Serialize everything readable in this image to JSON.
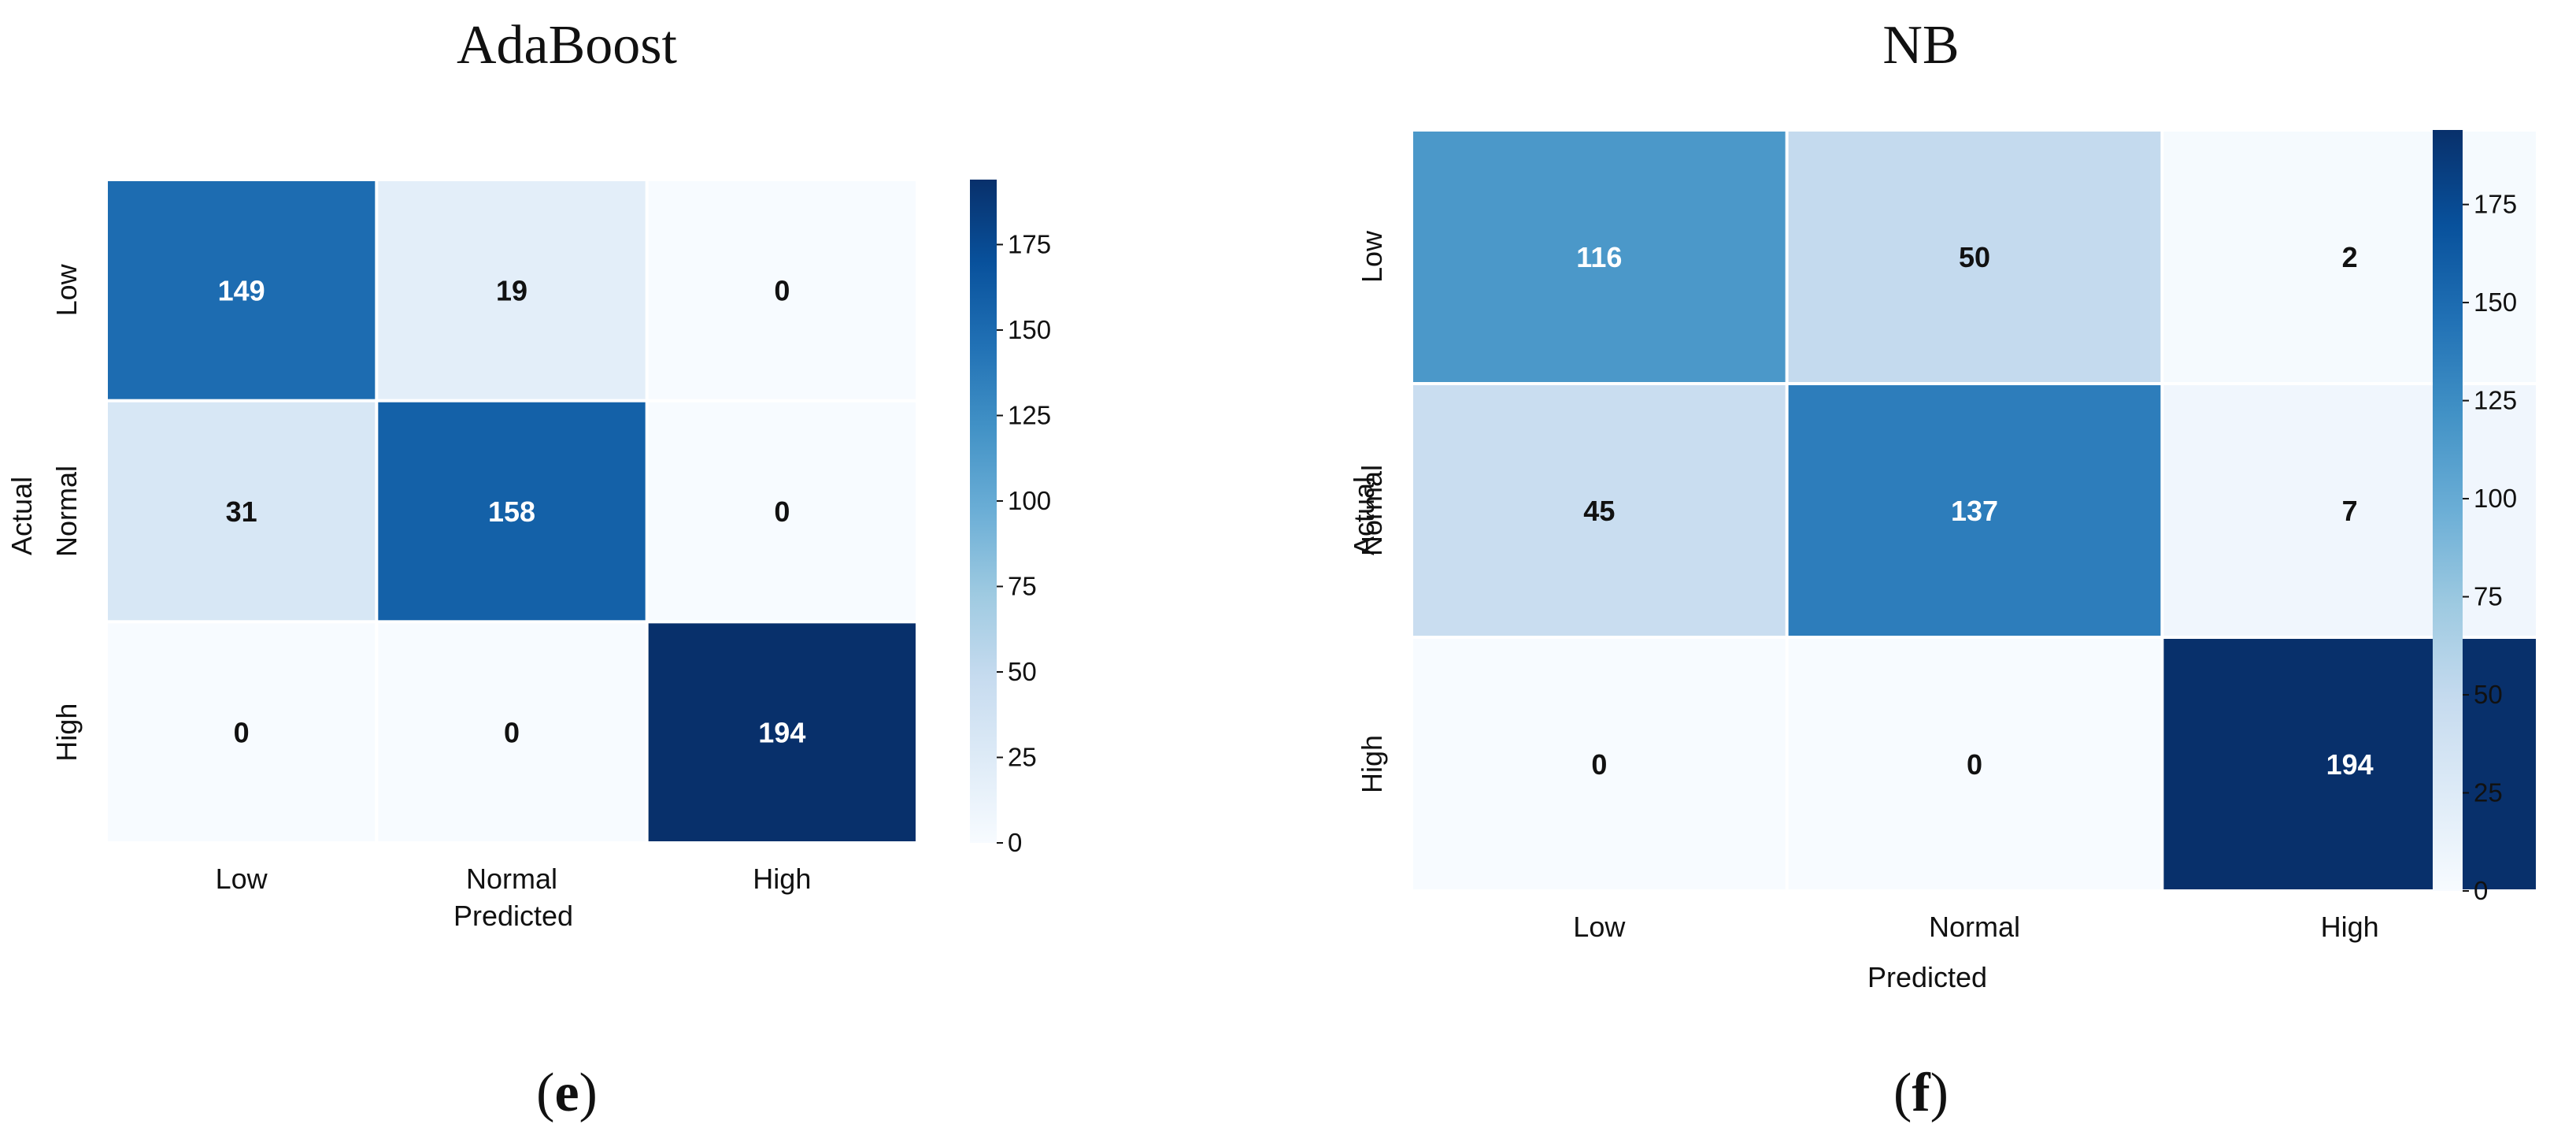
{
  "panels": [
    {
      "panel_letter": "e",
      "chart_data": {
        "type": "heatmap",
        "title": "AdaBoost",
        "xlabel": "Predicted",
        "ylabel": "Actual",
        "x_categories": [
          "Low",
          "Normal",
          "High"
        ],
        "y_categories": [
          "Low",
          "Normal",
          "High"
        ],
        "values": [
          [
            149,
            19,
            0
          ],
          [
            31,
            158,
            0
          ],
          [
            0,
            0,
            194
          ]
        ],
        "colorbar": {
          "min": 0,
          "max": 194,
          "ticks": [
            0,
            25,
            50,
            75,
            100,
            125,
            150,
            175
          ]
        },
        "colormap": "Blues"
      }
    },
    {
      "panel_letter": "f",
      "chart_data": {
        "type": "heatmap",
        "title": "NB",
        "xlabel": "Predicted",
        "ylabel": "Actual",
        "x_categories": [
          "Low",
          "Normal",
          "High"
        ],
        "y_categories": [
          "Low",
          "Normal",
          "High"
        ],
        "values": [
          [
            116,
            50,
            2
          ],
          [
            45,
            137,
            7
          ],
          [
            0,
            0,
            194
          ]
        ],
        "colorbar": {
          "min": 0,
          "max": 194,
          "ticks": [
            0,
            25,
            50,
            75,
            100,
            125,
            150,
            175
          ]
        },
        "colormap": "Blues"
      }
    }
  ],
  "colors": {
    "blues_stops": [
      "#f7fbff",
      "#deebf7",
      "#c6dbef",
      "#9ecae1",
      "#6baed6",
      "#4292c6",
      "#2171b5",
      "#08519c",
      "#08306b"
    ]
  }
}
